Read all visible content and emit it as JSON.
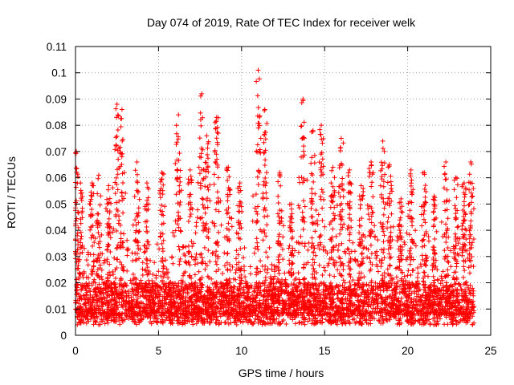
{
  "chart_data": {
    "type": "scatter",
    "title": "Day 074 of 2019, Rate Of TEC Index for receiver welk",
    "xlabel": "GPS time / hours",
    "ylabel": "ROTI / TECUs",
    "xlim": [
      0,
      25
    ],
    "ylim": [
      0,
      0.11
    ],
    "xticks": [
      0,
      5,
      10,
      15,
      20,
      25
    ],
    "xtick_labels": [
      "0",
      "5",
      "10",
      "15",
      "20",
      "25"
    ],
    "yticks": [
      0,
      0.01,
      0.02,
      0.03,
      0.04,
      0.05,
      0.06,
      0.07,
      0.08,
      0.09,
      0.1,
      0.11
    ],
    "ytick_labels": [
      "0",
      "0.01",
      "0.02",
      "0.03",
      "0.04",
      "0.05",
      "0.06",
      "0.07",
      "0.08",
      "0.09",
      "0.1",
      "0.11"
    ],
    "grid": true,
    "marker": "+",
    "color": "#ff0000",
    "series": [
      {
        "x_range": [
          0,
          24
        ],
        "peaks": [
          {
            "x": 0.05,
            "y": 0.07
          },
          {
            "x": 0.3,
            "y": 0.058
          },
          {
            "x": 1.0,
            "y": 0.058
          },
          {
            "x": 1.4,
            "y": 0.061
          },
          {
            "x": 2.0,
            "y": 0.057
          },
          {
            "x": 2.5,
            "y": 0.088
          },
          {
            "x": 2.8,
            "y": 0.086
          },
          {
            "x": 3.7,
            "y": 0.066
          },
          {
            "x": 4.3,
            "y": 0.058
          },
          {
            "x": 5.2,
            "y": 0.062
          },
          {
            "x": 6.2,
            "y": 0.084
          },
          {
            "x": 6.9,
            "y": 0.063
          },
          {
            "x": 7.6,
            "y": 0.092
          },
          {
            "x": 7.9,
            "y": 0.076
          },
          {
            "x": 8.5,
            "y": 0.083
          },
          {
            "x": 9.2,
            "y": 0.064
          },
          {
            "x": 9.9,
            "y": 0.058
          },
          {
            "x": 11.0,
            "y": 0.101
          },
          {
            "x": 11.4,
            "y": 0.086
          },
          {
            "x": 12.3,
            "y": 0.062
          },
          {
            "x": 13.0,
            "y": 0.05
          },
          {
            "x": 13.7,
            "y": 0.09
          },
          {
            "x": 14.3,
            "y": 0.078
          },
          {
            "x": 14.8,
            "y": 0.08
          },
          {
            "x": 15.5,
            "y": 0.064
          },
          {
            "x": 16.0,
            "y": 0.075
          },
          {
            "x": 16.5,
            "y": 0.063
          },
          {
            "x": 17.2,
            "y": 0.057
          },
          {
            "x": 17.8,
            "y": 0.066
          },
          {
            "x": 18.5,
            "y": 0.074
          },
          {
            "x": 18.9,
            "y": 0.065
          },
          {
            "x": 19.6,
            "y": 0.052
          },
          {
            "x": 20.2,
            "y": 0.063
          },
          {
            "x": 21.0,
            "y": 0.062
          },
          {
            "x": 21.6,
            "y": 0.053
          },
          {
            "x": 22.3,
            "y": 0.066
          },
          {
            "x": 22.9,
            "y": 0.06
          },
          {
            "x": 23.4,
            "y": 0.058
          },
          {
            "x": 23.8,
            "y": 0.066
          }
        ],
        "baseline_range": [
          0.004,
          0.02
        ]
      }
    ]
  }
}
